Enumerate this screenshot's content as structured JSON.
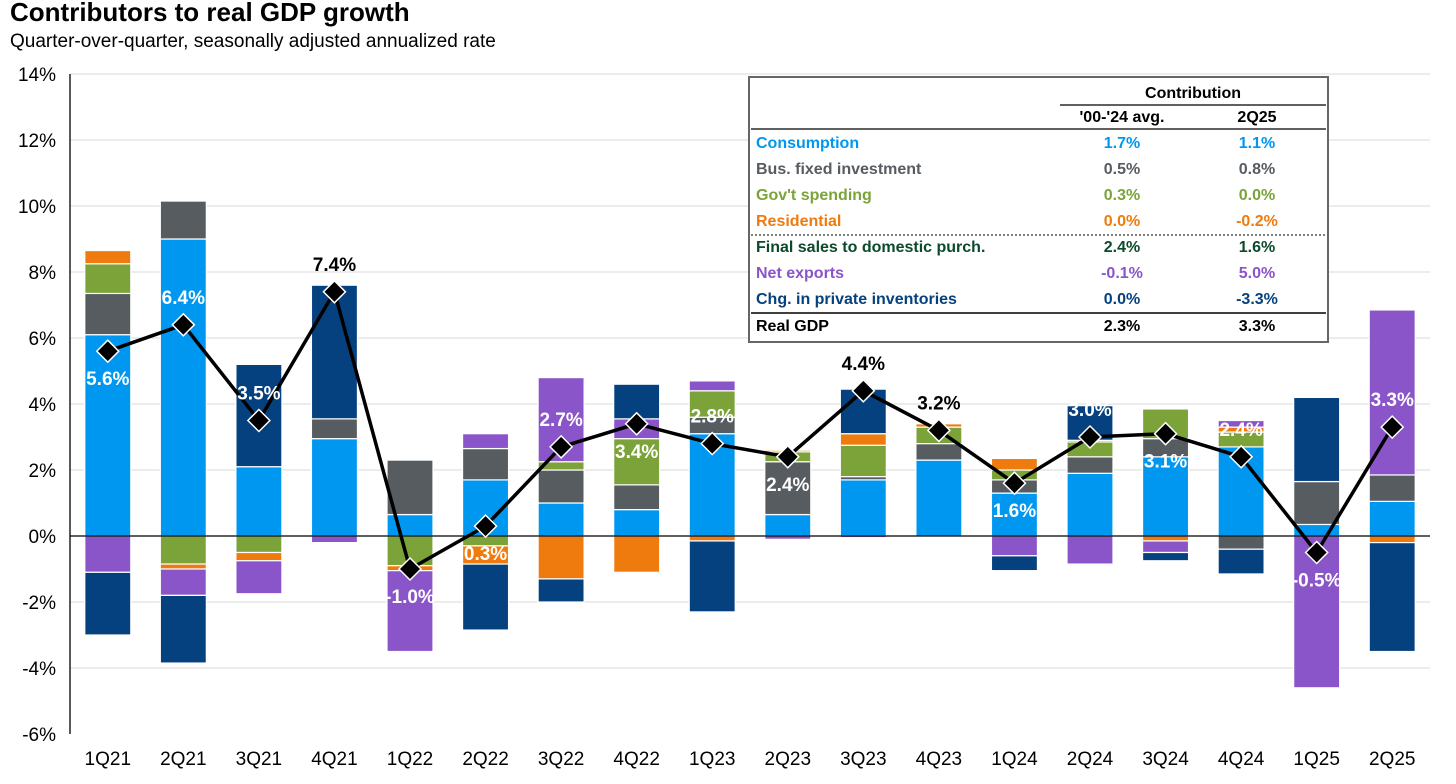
{
  "title": "Contributors to real GDP growth",
  "subtitle": "Quarter-over-quarter, seasonally adjusted annualized rate",
  "colors": {
    "consumption": "#0097f0",
    "bus_fixed_investment": "#575c61",
    "govt_spending": "#7ba33a",
    "residential": "#ef7b0e",
    "net_exports": "#8a55c8",
    "private_inventories": "#06417f",
    "final_sales": "#0b4a2a",
    "real_gdp": "#000000"
  },
  "chart_data": {
    "type": "bar",
    "subtype": "stacked bar with line overlay",
    "ylim": [
      -6,
      14
    ],
    "yticks": [
      -6,
      -4,
      -2,
      0,
      2,
      4,
      6,
      8,
      10,
      12,
      14
    ],
    "ytick_labels": [
      "-6%",
      "-4%",
      "-2%",
      "0%",
      "2%",
      "4%",
      "6%",
      "8%",
      "10%",
      "12%",
      "14%"
    ],
    "categories": [
      "1Q21",
      "2Q21",
      "3Q21",
      "4Q21",
      "1Q22",
      "2Q22",
      "3Q22",
      "4Q22",
      "1Q23",
      "2Q23",
      "3Q23",
      "4Q23",
      "1Q24",
      "2Q24",
      "3Q24",
      "4Q24",
      "1Q25",
      "2Q25"
    ],
    "series": [
      {
        "name": "Consumption",
        "key": "consumption",
        "values": [
          6.1,
          9.0,
          2.1,
          2.95,
          0.65,
          1.7,
          1.0,
          0.8,
          3.1,
          0.65,
          1.7,
          2.3,
          1.3,
          1.9,
          2.4,
          2.7,
          0.35,
          1.05
        ]
      },
      {
        "name": "Bus. fixed investment",
        "key": "bus_fixed_investment",
        "values": [
          1.25,
          1.15,
          0.0,
          0.6,
          1.65,
          0.95,
          1.0,
          0.75,
          0.5,
          1.6,
          0.1,
          0.5,
          0.4,
          0.5,
          0.55,
          -0.4,
          1.3,
          0.8
        ]
      },
      {
        "name": "Gov't spending",
        "key": "govt_spending",
        "values": [
          0.9,
          -0.85,
          -0.5,
          0.0,
          -0.9,
          -0.3,
          0.25,
          1.4,
          0.8,
          0.3,
          0.95,
          0.5,
          0.3,
          0.45,
          0.9,
          0.45,
          0.0,
          0.0
        ]
      },
      {
        "name": "Residential",
        "key": "residential",
        "values": [
          0.4,
          -0.15,
          -0.25,
          0.0,
          -0.15,
          -0.55,
          -1.3,
          -1.1,
          -0.15,
          0.05,
          0.35,
          0.1,
          0.35,
          0.05,
          -0.15,
          0.15,
          0.0,
          -0.2
        ]
      },
      {
        "name": "Net exports",
        "key": "net_exports",
        "values": [
          -1.1,
          -0.8,
          -1.0,
          -0.2,
          -2.45,
          0.45,
          2.55,
          0.6,
          0.3,
          -0.1,
          -0.05,
          0.0,
          -0.6,
          -0.85,
          -0.35,
          0.2,
          -4.6,
          5.0
        ]
      },
      {
        "name": "Chg. in private inventories",
        "key": "private_inventories",
        "values": [
          -1.9,
          -2.05,
          3.1,
          4.05,
          0.0,
          -2.0,
          -0.7,
          1.05,
          -2.15,
          0.0,
          1.35,
          0.0,
          -0.45,
          1.05,
          -0.25,
          -0.75,
          2.55,
          -3.3
        ]
      }
    ],
    "line": {
      "name": "Real GDP",
      "values": [
        5.6,
        6.4,
        3.5,
        7.4,
        -1.0,
        0.3,
        2.7,
        3.4,
        2.8,
        2.4,
        4.4,
        3.2,
        1.6,
        3.0,
        3.1,
        2.4,
        -0.5,
        3.3
      ]
    },
    "data_labels": [
      "5.6%",
      "6.4%",
      "3.5%",
      "7.4%",
      "-1.0%",
      "0.3%",
      "2.7%",
      "3.4%",
      "2.8%",
      "2.4%",
      "4.4%",
      "3.2%",
      "1.6%",
      "3.0%",
      "3.1%",
      "2.4%",
      "-0.5%",
      "3.3%"
    ],
    "data_label_positions": [
      "below",
      "above",
      "above",
      "above",
      "below",
      "below",
      "above",
      "below",
      "above",
      "below",
      "above",
      "above",
      "below",
      "above",
      "below",
      "above",
      "below",
      "above"
    ],
    "data_label_dark": [
      false,
      false,
      false,
      true,
      false,
      false,
      false,
      false,
      false,
      false,
      true,
      true,
      false,
      false,
      false,
      false,
      false,
      false
    ],
    "legend_table": {
      "header_group": "Contribution",
      "col1": "'00-'24 avg.",
      "col2": "2Q25",
      "rows": [
        {
          "label": "Consumption",
          "avg": "1.7%",
          "q": "1.1%",
          "color_key": "consumption"
        },
        {
          "label": "Bus. fixed investment",
          "avg": "0.5%",
          "q": "0.8%",
          "color_key": "bus_fixed_investment"
        },
        {
          "label": "Gov't spending",
          "avg": "0.3%",
          "q": "0.0%",
          "color_key": "govt_spending"
        },
        {
          "label": "Residential",
          "avg": "0.0%",
          "q": "-0.2%",
          "color_key": "residential"
        },
        {
          "label": "Final sales to domestic purch.",
          "avg": "2.4%",
          "q": "1.6%",
          "color_key": "final_sales"
        },
        {
          "label": "Net exports",
          "avg": "-0.1%",
          "q": "5.0%",
          "color_key": "net_exports"
        },
        {
          "label": "Chg. in private inventories",
          "avg": "0.0%",
          "q": "-3.3%",
          "color_key": "private_inventories"
        },
        {
          "label": "Real GDP",
          "avg": "2.3%",
          "q": "3.3%",
          "color_key": "real_gdp"
        }
      ]
    }
  }
}
